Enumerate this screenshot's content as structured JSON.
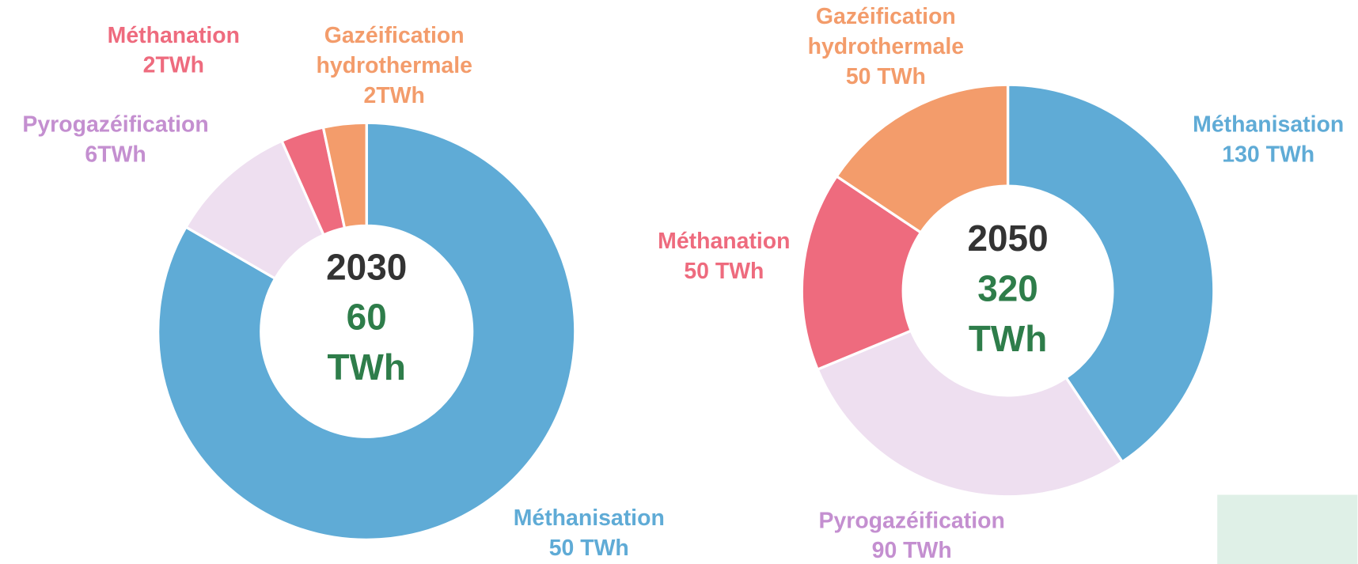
{
  "chart_data": [
    {
      "type": "donut",
      "center": {
        "title": "2030",
        "total": 60,
        "unit": "TWh"
      },
      "categories": [
        "Méthanisation",
        "Pyrogazéification",
        "Méthanation",
        "Gazéification hydrothermale"
      ],
      "values": [
        50,
        6,
        2,
        2
      ],
      "value_labels": [
        "50 TWh",
        "6TWh",
        "2TWh",
        "2TWh"
      ],
      "colors": [
        "#5fabd6",
        "#eedff0",
        "#ee6b7e",
        "#f39c6b"
      ],
      "label_colors": [
        "#5fabd6",
        "#c48fd0",
        "#ee6b7e",
        "#f39c6b"
      ]
    },
    {
      "type": "donut",
      "center": {
        "title": "2050",
        "total": 320,
        "unit": "TWh"
      },
      "categories": [
        "Méthanisation",
        "Pyrogazéification",
        "Méthanation",
        "Gazéification hydrothermale"
      ],
      "values": [
        130,
        90,
        50,
        50
      ],
      "value_labels": [
        "130 TWh",
        "90 TWh",
        "50 TWh",
        "50 TWh"
      ],
      "colors": [
        "#5fabd6",
        "#eedff0",
        "#ee6b7e",
        "#f39c6b"
      ],
      "label_colors": [
        "#5fabd6",
        "#c48fd0",
        "#ee6b7e",
        "#f39c6b"
      ]
    }
  ]
}
